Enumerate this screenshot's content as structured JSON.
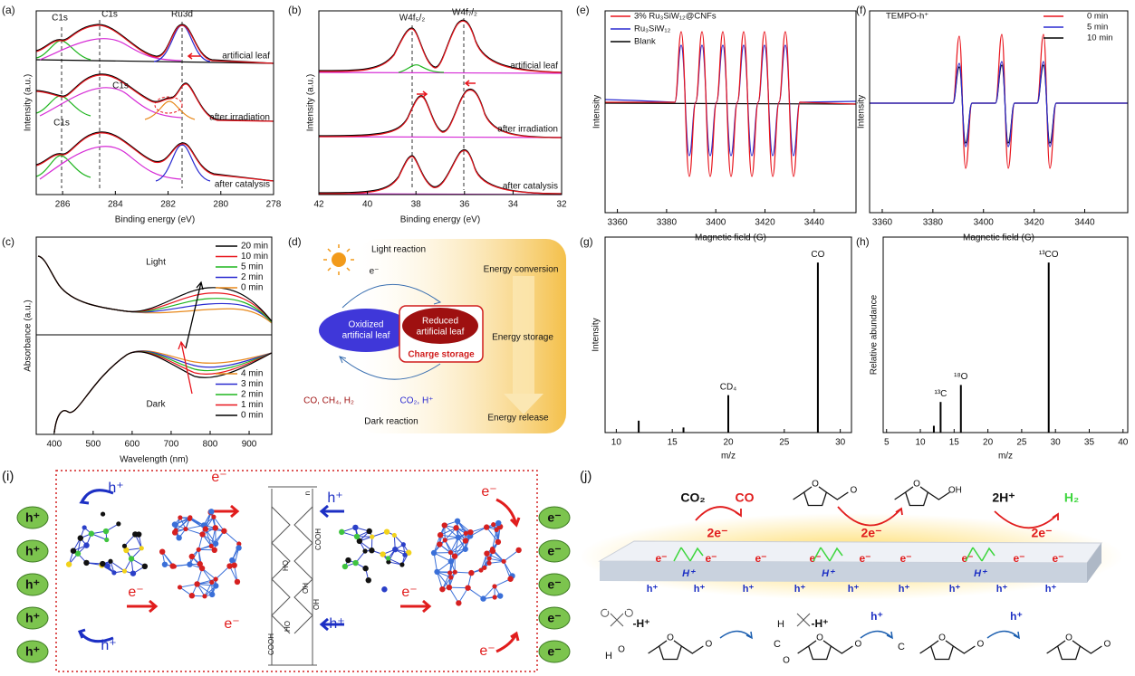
{
  "panels": {
    "a": {
      "label": "(a)",
      "xlabel": "Binding energy (eV)",
      "ylabel": "Intensity (a.u.)",
      "xlim": [
        287,
        278
      ],
      "xticks": [
        286,
        284,
        282,
        280,
        278
      ],
      "peaks": [
        "C1s",
        "C1s",
        "Ru3d",
        "C1s",
        "C1s"
      ],
      "traces": [
        "artificial leaf",
        "after irradiation",
        "after catalysis"
      ]
    },
    "b": {
      "label": "(b)",
      "xlabel": "Binding energy (eV)",
      "ylabel": "Intensity (a.u.)",
      "xlim": [
        42,
        32
      ],
      "xticks": [
        42,
        40,
        38,
        36,
        34,
        32
      ],
      "peaks": [
        "W4f₅/₂",
        "W4f₇/₂"
      ],
      "traces": [
        "artificial leaf",
        "after irradiation",
        "after catalysis"
      ]
    },
    "c": {
      "label": "(c)",
      "xlabel": "Wavelength (nm)",
      "ylabel": "Absorbance (a.u.)",
      "xlim": [
        354,
        958
      ],
      "xticks": [
        400,
        500,
        600,
        700,
        800,
        900
      ],
      "regions": [
        "Light",
        "Dark"
      ],
      "legend_light": [
        "20 min",
        "10 min",
        "5 min",
        "2 min",
        "0 min"
      ],
      "colors_light": [
        "#000000",
        "#e8141c",
        "#1fb51f",
        "#2a2ad0",
        "#e8891c"
      ],
      "legend_dark": [
        "4 min",
        "3 min",
        "2 min",
        "1 min",
        "0 min"
      ],
      "colors_dark": [
        "#e8891c",
        "#2a2ad0",
        "#1fb51f",
        "#e8141c",
        "#000000"
      ]
    },
    "d": {
      "label": "(d)",
      "light_reaction": "Light reaction",
      "electron": "e⁻",
      "oxidized": [
        "Oxidized",
        "artificial leaf"
      ],
      "reduced": [
        "Reduced",
        "artificial leaf"
      ],
      "charge_storage": "Charge storage",
      "products": "CO, CH₄, H₂",
      "reactants": "CO₂, H⁺",
      "dark_reaction": "Dark reaction",
      "energy": [
        "Energy conversion",
        "Energy storage",
        "Energy release"
      ]
    },
    "e": {
      "label": "(e)",
      "xlabel": "Magnetic field (G)",
      "ylabel": "Intensity",
      "xlim": [
        3355,
        3457
      ],
      "xticks": [
        3360,
        3380,
        3400,
        3420,
        3440
      ],
      "legend": [
        "3% Ru₃SiW₁₂@CNFs",
        "Ru₃SiW₁₂",
        "Blank"
      ],
      "colors": [
        "#e8141c",
        "#2a2ad0",
        "#000000"
      ]
    },
    "f": {
      "label": "(f)",
      "title": "TEMPO-h⁺",
      "xlabel": "Magnetic field (G)",
      "ylabel": "Intensity",
      "xlim": [
        3355,
        3457
      ],
      "xticks": [
        3360,
        3380,
        3400,
        3420,
        3440
      ],
      "legend": [
        "0 min",
        "5 min",
        "10 min"
      ],
      "colors": [
        "#e8141c",
        "#2a2ad0",
        "#000000"
      ]
    },
    "i": {
      "label": "(i)",
      "ovals_left": [
        "h⁺",
        "h⁺",
        "h⁺",
        "h⁺",
        "h⁺"
      ],
      "ovals_right": [
        "e⁻",
        "e⁻",
        "e⁻",
        "e⁻",
        "e⁻"
      ],
      "arrow_h": [
        "h⁺",
        "h⁺",
        "h⁺",
        "h⁺"
      ],
      "arrow_e": [
        "e⁻",
        "e⁻",
        "e⁻",
        "e⁻",
        "e⁻",
        "e⁻"
      ],
      "cellulose": [
        "COOH",
        "COOH",
        "HO",
        "OH",
        "HO",
        "OH",
        "n"
      ]
    },
    "j": {
      "label": "(j)",
      "top": [
        "CO₂",
        "CO",
        "2e⁻",
        "2e⁻",
        "2H⁺",
        "H₂",
        "2e⁻"
      ],
      "slab_e": [
        "e⁻",
        "e⁻",
        "e⁻",
        "e⁻",
        "e⁻",
        "e⁻",
        "e⁻",
        "e⁻",
        "e⁻"
      ],
      "slab_h": [
        "h⁺",
        "h⁺",
        "h⁺",
        "h⁺",
        "h⁺",
        "h⁺",
        "h⁺",
        "h⁺",
        "h⁺"
      ],
      "slab_H": [
        "H⁺",
        "H⁺",
        "H⁺"
      ],
      "mechanism": [
        "-H⁺",
        "-H⁺",
        "h⁺",
        "h⁺",
        "H",
        "H",
        "C",
        "C"
      ],
      "ring_o": [
        "O",
        "O",
        "O",
        "O",
        "O",
        "O"
      ],
      "side_o": [
        "O",
        "OH",
        "O",
        "O",
        "O",
        "O",
        "O",
        "O"
      ]
    }
  },
  "chart_data": [
    {
      "type": "stem",
      "label": "(g)",
      "xlabel": "m/z",
      "ylabel": "Intensity",
      "x": [
        12,
        16,
        20,
        28
      ],
      "values": [
        7,
        3,
        22,
        100
      ],
      "peak_labels": [
        null,
        null,
        "CD₄",
        "CO"
      ],
      "xlim": [
        9,
        31
      ],
      "ylim": [
        0,
        115
      ],
      "xticks": [
        10,
        15,
        20,
        25,
        30
      ],
      "color": "#000000"
    },
    {
      "type": "stem",
      "label": "(h)",
      "xlabel": "m/z",
      "ylabel": "Relative abundance",
      "x": [
        12,
        13,
        16,
        29
      ],
      "values": [
        4,
        18,
        28,
        100
      ],
      "peak_labels": [
        null,
        "¹³C",
        "¹⁸O",
        "¹³CO"
      ],
      "xlim": [
        4.5,
        40.7
      ],
      "ylim": [
        0,
        115
      ],
      "xticks": [
        5,
        10,
        15,
        20,
        25,
        30,
        35,
        40
      ],
      "color": "#000000"
    }
  ]
}
